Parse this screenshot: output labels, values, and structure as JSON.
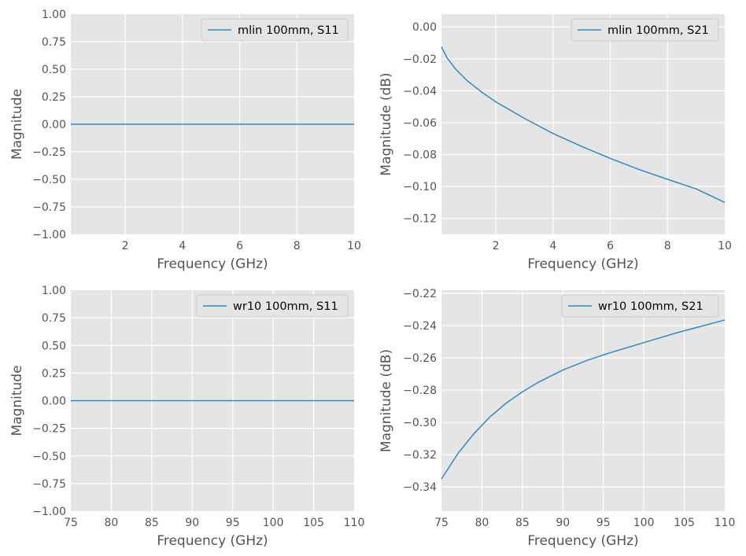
{
  "chart_data": [
    {
      "type": "line",
      "xlabel": "Frequency (GHz)",
      "ylabel": "Magnitude",
      "xlim": [
        0.1,
        10
      ],
      "ylim": [
        -1.0,
        1.0
      ],
      "xticks": [
        2,
        4,
        6,
        8,
        10
      ],
      "xtick_labels": [
        "2",
        "4",
        "6",
        "8",
        "10"
      ],
      "yticks": [
        -1.0,
        -0.75,
        -0.5,
        -0.25,
        0.0,
        0.25,
        0.5,
        0.75,
        1.0
      ],
      "ytick_labels": [
        "−1.00",
        "−0.75",
        "−0.50",
        "−0.25",
        "0.00",
        "0.25",
        "0.50",
        "0.75",
        "1.00"
      ],
      "grid": true,
      "legend_position": "top-right",
      "series": [
        {
          "name": "mlin 100mm, S11",
          "color": "#348abd",
          "x": [
            0.1,
            1,
            2,
            3,
            4,
            5,
            6,
            7,
            8,
            9,
            10
          ],
          "y": [
            0,
            0,
            0,
            0,
            0,
            0,
            0,
            0,
            0,
            0,
            0
          ]
        }
      ]
    },
    {
      "type": "line",
      "xlabel": "Frequency (GHz)",
      "ylabel": "Magnitude (dB)",
      "xlim": [
        0.1,
        10
      ],
      "ylim": [
        -0.13,
        0.008
      ],
      "xticks": [
        2,
        4,
        6,
        8,
        10
      ],
      "xtick_labels": [
        "2",
        "4",
        "6",
        "8",
        "10"
      ],
      "yticks": [
        -0.12,
        -0.1,
        -0.08,
        -0.06,
        -0.04,
        -0.02,
        0.0
      ],
      "ytick_labels": [
        "−0.12",
        "−0.10",
        "−0.08",
        "−0.06",
        "−0.04",
        "−0.02",
        "0.00"
      ],
      "grid": true,
      "legend_position": "top-right",
      "series": [
        {
          "name": "mlin 100mm, S21",
          "color": "#348abd",
          "x": [
            0.1,
            0.3,
            0.6,
            1,
            1.5,
            2,
            3,
            4,
            5,
            6,
            7,
            8,
            9,
            10
          ],
          "y": [
            -0.0125,
            -0.0195,
            -0.0265,
            -0.0337,
            -0.0408,
            -0.047,
            -0.0573,
            -0.0668,
            -0.0749,
            -0.0824,
            -0.0893,
            -0.0955,
            -0.1015,
            -0.11
          ]
        }
      ]
    },
    {
      "type": "line",
      "xlabel": "Frequency (GHz)",
      "ylabel": "Magnitude",
      "xlim": [
        75,
        110
      ],
      "ylim": [
        -1.0,
        1.0
      ],
      "xticks": [
        75,
        80,
        85,
        90,
        95,
        100,
        105,
        110
      ],
      "xtick_labels": [
        "75",
        "80",
        "85",
        "90",
        "95",
        "100",
        "105",
        "110"
      ],
      "yticks": [
        -1.0,
        -0.75,
        -0.5,
        -0.25,
        0.0,
        0.25,
        0.5,
        0.75,
        1.0
      ],
      "ytick_labels": [
        "−1.00",
        "−0.75",
        "−0.50",
        "−0.25",
        "0.00",
        "0.25",
        "0.50",
        "0.75",
        "1.00"
      ],
      "grid": true,
      "legend_position": "top-right",
      "series": [
        {
          "name": "wr10 100mm, S11",
          "color": "#348abd",
          "x": [
            75,
            80,
            85,
            90,
            95,
            100,
            105,
            110
          ],
          "y": [
            0,
            0,
            0,
            0,
            0,
            0,
            0,
            0
          ]
        }
      ]
    },
    {
      "type": "line",
      "xlabel": "Frequency (GHz)",
      "ylabel": "Magnitude (dB)",
      "xlim": [
        75,
        110
      ],
      "ylim": [
        -0.355,
        -0.218
      ],
      "xticks": [
        75,
        80,
        85,
        90,
        95,
        100,
        105,
        110
      ],
      "xtick_labels": [
        "75",
        "80",
        "85",
        "90",
        "95",
        "100",
        "105",
        "110"
      ],
      "yticks": [
        -0.34,
        -0.32,
        -0.3,
        -0.28,
        -0.26,
        -0.24,
        -0.22
      ],
      "ytick_labels": [
        "−0.34",
        "−0.32",
        "−0.30",
        "−0.28",
        "−0.26",
        "−0.24",
        "−0.22"
      ],
      "grid": true,
      "legend_position": "top-right",
      "series": [
        {
          "name": "wr10 100mm, S21",
          "color": "#348abd",
          "x": [
            75,
            77,
            79,
            81,
            83,
            85,
            87,
            90,
            93,
            96,
            100,
            104,
            107,
            110
          ],
          "y": [
            -0.335,
            -0.3195,
            -0.307,
            -0.2965,
            -0.288,
            -0.281,
            -0.275,
            -0.2675,
            -0.2615,
            -0.2565,
            -0.2505,
            -0.2445,
            -0.2405,
            -0.2365
          ]
        }
      ]
    }
  ]
}
